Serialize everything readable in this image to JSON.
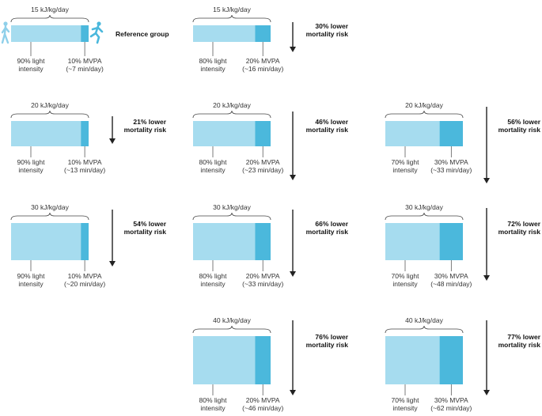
{
  "reference_label": "Reference group",
  "panels": [
    {
      "energy": "15 kJ/kg/day",
      "light_pct": 90,
      "light": [
        "90% light",
        "intensity"
      ],
      "mvpa": [
        "10% MVPA",
        "(~7 min/day)"
      ],
      "risk": [],
      "reference": true
    },
    {
      "energy": "15 kJ/kg/day",
      "light_pct": 80,
      "light": [
        "80% light",
        "intensity"
      ],
      "mvpa": [
        "20% MVPA",
        "(~16 min/day)"
      ],
      "risk": [
        "30% lower",
        "mortality risk"
      ],
      "reference": false
    },
    {
      "energy": "20 kJ/kg/day",
      "light_pct": 90,
      "light": [
        "90% light",
        "intensity"
      ],
      "mvpa": [
        "10% MVPA",
        "(~13 min/day)"
      ],
      "risk": [
        "21% lower",
        "mortality risk"
      ],
      "reference": false
    },
    {
      "energy": "20 kJ/kg/day",
      "light_pct": 80,
      "light": [
        "80% light",
        "intensity"
      ],
      "mvpa": [
        "20% MVPA",
        "(~23 min/day)"
      ],
      "risk": [
        "46% lower",
        "mortality risk"
      ],
      "reference": false
    },
    {
      "energy": "20 kJ/kg/day",
      "light_pct": 70,
      "light": [
        "70% light",
        "intensity"
      ],
      "mvpa": [
        "30% MVPA",
        "(~33 min/day)"
      ],
      "risk": [
        "56% lower",
        "mortality risk"
      ],
      "reference": false
    },
    {
      "energy": "30 kJ/kg/day",
      "light_pct": 90,
      "light": [
        "90% light",
        "intensity"
      ],
      "mvpa": [
        "10% MVPA",
        "(~20 min/day)"
      ],
      "risk": [
        "54% lower",
        "mortality risk"
      ],
      "reference": false
    },
    {
      "energy": "30 kJ/kg/day",
      "light_pct": 80,
      "light": [
        "80% light",
        "intensity"
      ],
      "mvpa": [
        "20% MVPA",
        "(~33 min/day)"
      ],
      "risk": [
        "66% lower",
        "mortality risk"
      ],
      "reference": false
    },
    {
      "energy": "30 kJ/kg/day",
      "light_pct": 70,
      "light": [
        "70% light",
        "intensity"
      ],
      "mvpa": [
        "30% MVPA",
        "(~48 min/day)"
      ],
      "risk": [
        "72% lower",
        "mortality risk"
      ],
      "reference": false
    },
    {
      "energy": "40 kJ/kg/day",
      "light_pct": 80,
      "light": [
        "80% light",
        "intensity"
      ],
      "mvpa": [
        "20% MVPA",
        "(~46 min/day)"
      ],
      "risk": [
        "76% lower",
        "mortality risk"
      ],
      "reference": false
    },
    {
      "energy": "40 kJ/kg/day",
      "light_pct": 70,
      "light": [
        "70% light",
        "intensity"
      ],
      "mvpa": [
        "30% MVPA",
        "(~62 min/day)"
      ],
      "risk": [
        "77% lower",
        "mortality risk"
      ],
      "reference": false
    }
  ],
  "colors": {
    "light": "#a6dcef",
    "mvpa": "#4bb8dc",
    "figure": "#8fd0ea",
    "line": "#444444",
    "arrow": "#222222"
  }
}
